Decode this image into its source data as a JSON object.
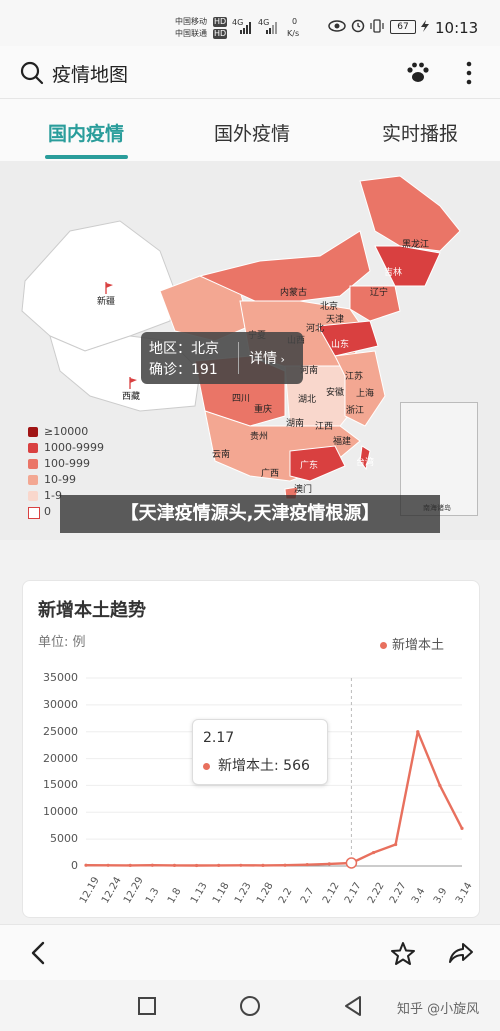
{
  "status": {
    "carrier1": "中国移动",
    "carrier2": "中国联通",
    "hd": "HD",
    "net1": "4G",
    "net2": "4G",
    "speed_value": "0",
    "speed_unit": "K/s",
    "battery": "67",
    "time": "10:13"
  },
  "header": {
    "title": "疫情地图"
  },
  "tabs": [
    {
      "label": "国内疫情"
    },
    {
      "label": "国外疫情"
    },
    {
      "label": "实时播报"
    }
  ],
  "map": {
    "provinces": [
      "黑龙江",
      "吉林",
      "辽宁",
      "内蒙古",
      "新疆",
      "北京",
      "天津",
      "河北",
      "山西",
      "宁夏",
      "山东",
      "河南",
      "西藏",
      "四川",
      "重庆",
      "湖北",
      "安徽",
      "江苏",
      "上海",
      "浙江",
      "贵州",
      "湖南",
      "江西",
      "福建",
      "云南",
      "广西",
      "广东",
      "台湾",
      "澳门",
      "南海诸岛"
    ],
    "tooltip": {
      "region_label": "地区：",
      "region_value": "北京",
      "confirmed_label": "确诊：",
      "confirmed_value": "191",
      "detail_label": "详情"
    },
    "legend": [
      {
        "label": "≥10000",
        "color": "#a01414"
      },
      {
        "label": "1000-9999",
        "color": "#d94040"
      },
      {
        "label": "100-999",
        "color": "#ea7567"
      },
      {
        "label": "10-99",
        "color": "#f3a792"
      },
      {
        "label": "1-9",
        "color": "#f9d7cc"
      },
      {
        "label": "0",
        "color": "#ffffff"
      }
    ],
    "banner": "【天津疫情源头,天津疫情根源】"
  },
  "chart_data": {
    "type": "line",
    "title": "新增本土趋势",
    "unit": "单位: 例",
    "series": [
      {
        "name": "新增本土",
        "color": "#e8705e",
        "x": [
          "12.19",
          "12.24",
          "12.29",
          "1.3",
          "1.8",
          "1.13",
          "1.18",
          "1.23",
          "1.28",
          "2.2",
          "2.7",
          "2.12",
          "2.17",
          "2.22",
          "2.27",
          "3.4",
          "3.9",
          "3.14"
        ],
        "values": [
          150,
          130,
          120,
          140,
          110,
          100,
          120,
          130,
          110,
          140,
          250,
          400,
          566,
          2500,
          4000,
          25000,
          15000,
          7000
        ]
      }
    ],
    "xticks": [
      "12.19",
      "12.24",
      "12.29",
      "1.3",
      "1.8",
      "1.13",
      "1.18",
      "1.23",
      "1.28",
      "2.2",
      "2.7",
      "2.12",
      "2.17",
      "2.22",
      "2.27",
      "3.4",
      "3.9",
      "3.14"
    ],
    "yticks": [
      "35000",
      "30000",
      "25000",
      "20000",
      "15000",
      "10000",
      "5000",
      "0"
    ],
    "ylim": [
      0,
      35000
    ],
    "tooltip": {
      "date": "2.17",
      "series": "新增本土",
      "value": "566"
    }
  },
  "watermark": "知乎 @小旋风"
}
